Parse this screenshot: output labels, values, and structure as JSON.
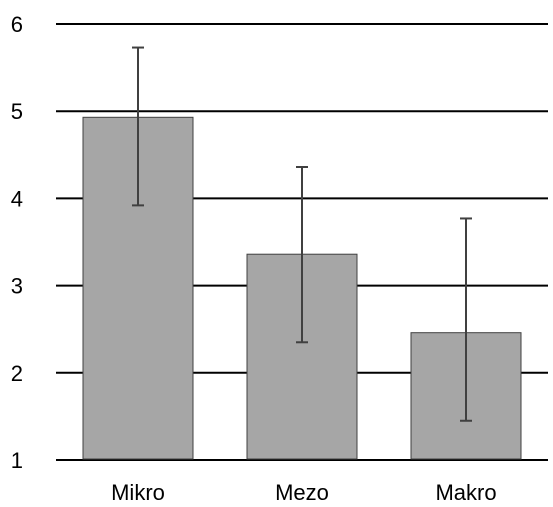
{
  "chart_data": {
    "type": "bar",
    "categories": [
      "Mikro",
      "Mezo",
      "Makro"
    ],
    "values": [
      4.93,
      3.36,
      2.46
    ],
    "error_bars": [
      {
        "low": 3.92,
        "high": 5.73
      },
      {
        "low": 2.35,
        "high": 4.36
      },
      {
        "low": 1.45,
        "high": 3.77
      }
    ],
    "y_ticks": [
      1,
      2,
      3,
      4,
      5,
      6
    ],
    "ylim": [
      1,
      6
    ],
    "grid": true,
    "legend": "none",
    "colors": {
      "bar_fill": "#a6a6a6",
      "bar_stroke": "#404040",
      "error_bar": "#404040",
      "grid": "#000000"
    }
  }
}
